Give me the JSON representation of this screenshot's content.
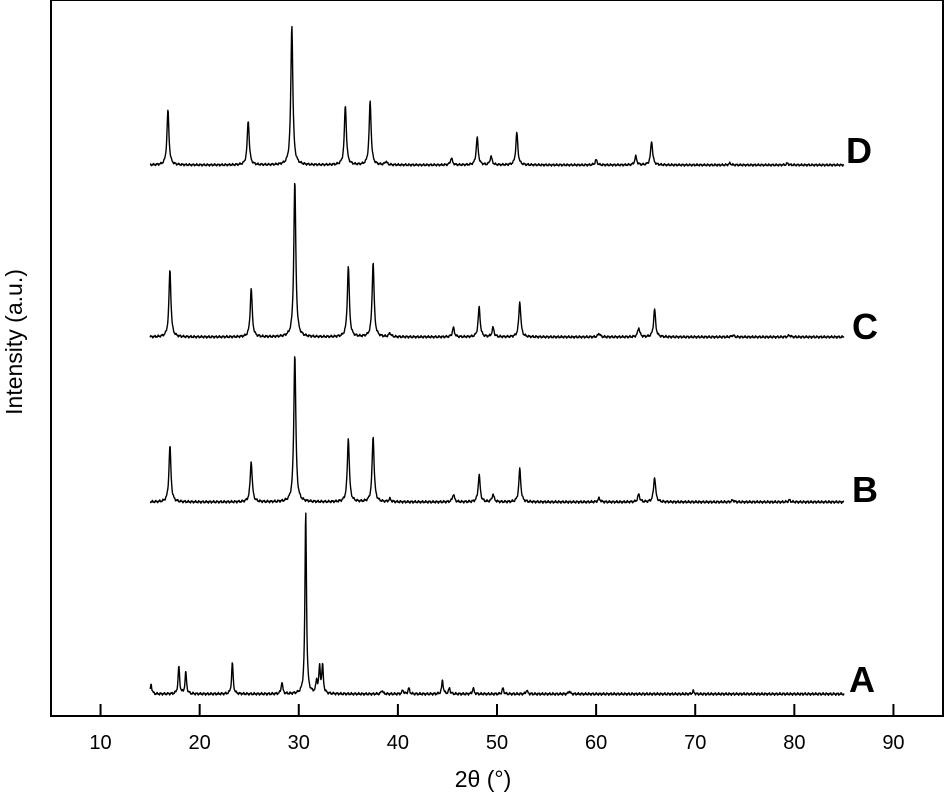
{
  "chart_data": {
    "type": "line",
    "title": "",
    "xlabel": "2θ (°)",
    "ylabel": "Intensity (a.u.)",
    "xlim": [
      5,
      95
    ],
    "xticks": [
      10,
      20,
      30,
      40,
      50,
      60,
      70,
      80,
      90
    ],
    "yticks": [],
    "grid": false,
    "legend": "none",
    "line_color": "#000000",
    "series": [
      {
        "name": "A",
        "x_range": [
          15,
          85
        ],
        "peaks": [
          {
            "x": 15.1,
            "h": 0.05
          },
          {
            "x": 17.9,
            "h": 0.14
          },
          {
            "x": 18.6,
            "h": 0.11
          },
          {
            "x": 23.3,
            "h": 0.16
          },
          {
            "x": 28.3,
            "h": 0.06
          },
          {
            "x": 30.7,
            "h": 0.93
          },
          {
            "x": 31.8,
            "h": 0.06
          },
          {
            "x": 32.1,
            "h": 0.13
          },
          {
            "x": 32.4,
            "h": 0.14
          },
          {
            "x": 38.4,
            "h": 0.02
          },
          {
            "x": 40.5,
            "h": 0.02
          },
          {
            "x": 41.1,
            "h": 0.03
          },
          {
            "x": 44.5,
            "h": 0.07
          },
          {
            "x": 45.2,
            "h": 0.03
          },
          {
            "x": 47.6,
            "h": 0.03
          },
          {
            "x": 50.6,
            "h": 0.03
          },
          {
            "x": 53.0,
            "h": 0.02
          },
          {
            "x": 57.3,
            "h": 0.015
          },
          {
            "x": 69.8,
            "h": 0.015
          }
        ]
      },
      {
        "name": "B",
        "x_range": [
          15,
          85
        ],
        "peaks": [
          {
            "x": 17.0,
            "h": 0.29
          },
          {
            "x": 25.2,
            "h": 0.21
          },
          {
            "x": 29.6,
            "h": 0.77
          },
          {
            "x": 35.0,
            "h": 0.33
          },
          {
            "x": 37.5,
            "h": 0.34
          },
          {
            "x": 39.2,
            "h": 0.015
          },
          {
            "x": 45.6,
            "h": 0.04
          },
          {
            "x": 48.2,
            "h": 0.14
          },
          {
            "x": 49.6,
            "h": 0.04
          },
          {
            "x": 52.3,
            "h": 0.17
          },
          {
            "x": 60.3,
            "h": 0.02
          },
          {
            "x": 64.3,
            "h": 0.04
          },
          {
            "x": 65.9,
            "h": 0.13
          },
          {
            "x": 73.8,
            "h": 0.01
          },
          {
            "x": 79.5,
            "h": 0.01
          }
        ]
      },
      {
        "name": "C",
        "x_range": [
          15,
          85
        ],
        "peaks": [
          {
            "x": 17.0,
            "h": 0.36
          },
          {
            "x": 25.2,
            "h": 0.26
          },
          {
            "x": 29.6,
            "h": 0.84
          },
          {
            "x": 35.0,
            "h": 0.38
          },
          {
            "x": 37.5,
            "h": 0.4
          },
          {
            "x": 39.2,
            "h": 0.02
          },
          {
            "x": 45.6,
            "h": 0.05
          },
          {
            "x": 48.2,
            "h": 0.16
          },
          {
            "x": 49.6,
            "h": 0.05
          },
          {
            "x": 52.3,
            "h": 0.19
          },
          {
            "x": 60.3,
            "h": 0.02
          },
          {
            "x": 64.3,
            "h": 0.05
          },
          {
            "x": 65.9,
            "h": 0.15
          },
          {
            "x": 73.8,
            "h": 0.01
          },
          {
            "x": 79.5,
            "h": 0.01
          }
        ]
      },
      {
        "name": "D",
        "x_range": [
          15,
          85
        ],
        "peaks": [
          {
            "x": 16.8,
            "h": 0.32
          },
          {
            "x": 24.9,
            "h": 0.26
          },
          {
            "x": 29.3,
            "h": 0.82
          },
          {
            "x": 34.7,
            "h": 0.35
          },
          {
            "x": 37.2,
            "h": 0.37
          },
          {
            "x": 38.8,
            "h": 0.02
          },
          {
            "x": 45.4,
            "h": 0.04
          },
          {
            "x": 48.0,
            "h": 0.16
          },
          {
            "x": 49.4,
            "h": 0.05
          },
          {
            "x": 52.0,
            "h": 0.19
          },
          {
            "x": 60.0,
            "h": 0.03
          },
          {
            "x": 64.0,
            "h": 0.05
          },
          {
            "x": 65.6,
            "h": 0.14
          },
          {
            "x": 73.5,
            "h": 0.01
          },
          {
            "x": 79.3,
            "h": 0.01
          }
        ]
      }
    ]
  }
}
